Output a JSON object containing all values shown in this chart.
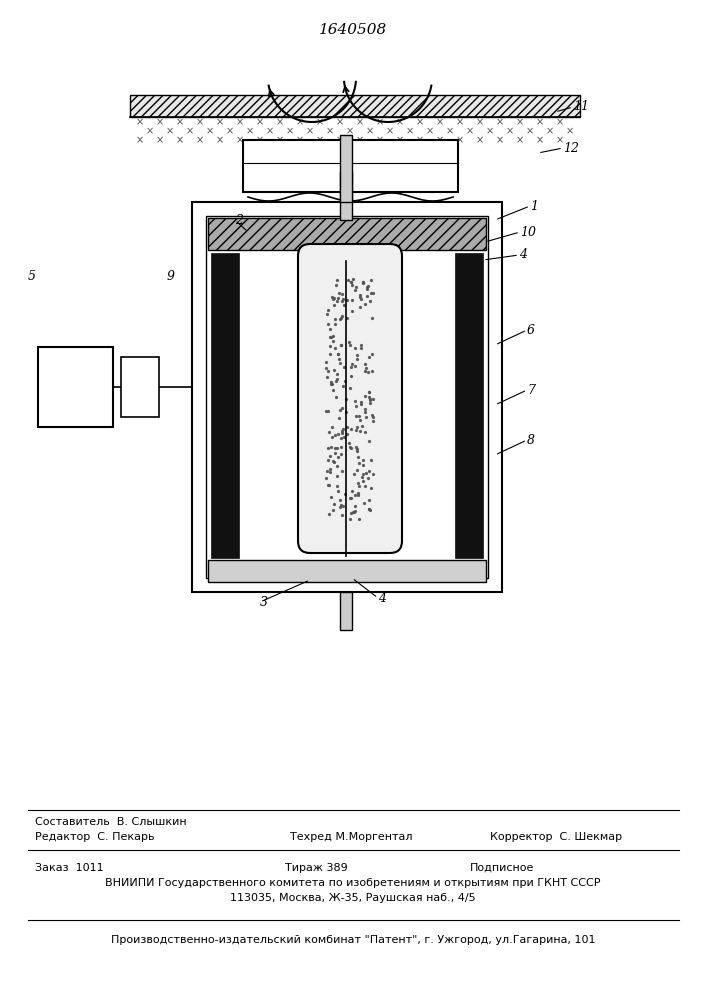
{
  "title": "1640508",
  "bg_color": "#ffffff",
  "footer": {
    "editor": "Редактор  С. Пекарь",
    "composer_title": "Составитель  В. Слышкин",
    "techred": "Техред М.Моргентал",
    "corrector": "Корректор  С. Шекмар",
    "order": "Заказ  1011",
    "tirazh": "Тираж 389",
    "podpisnoe": "Подписное",
    "vniipи": "ВНИИПИ Государственного комитета по изобретениям и открытиям при ГКНТ СССР",
    "address": "113035, Москва, Ж-35, Раушская наб., 4/5",
    "print": "Производственно-издательский комбинат \"Патент\", г. Ужгород, ул.Гагарина, 101"
  }
}
